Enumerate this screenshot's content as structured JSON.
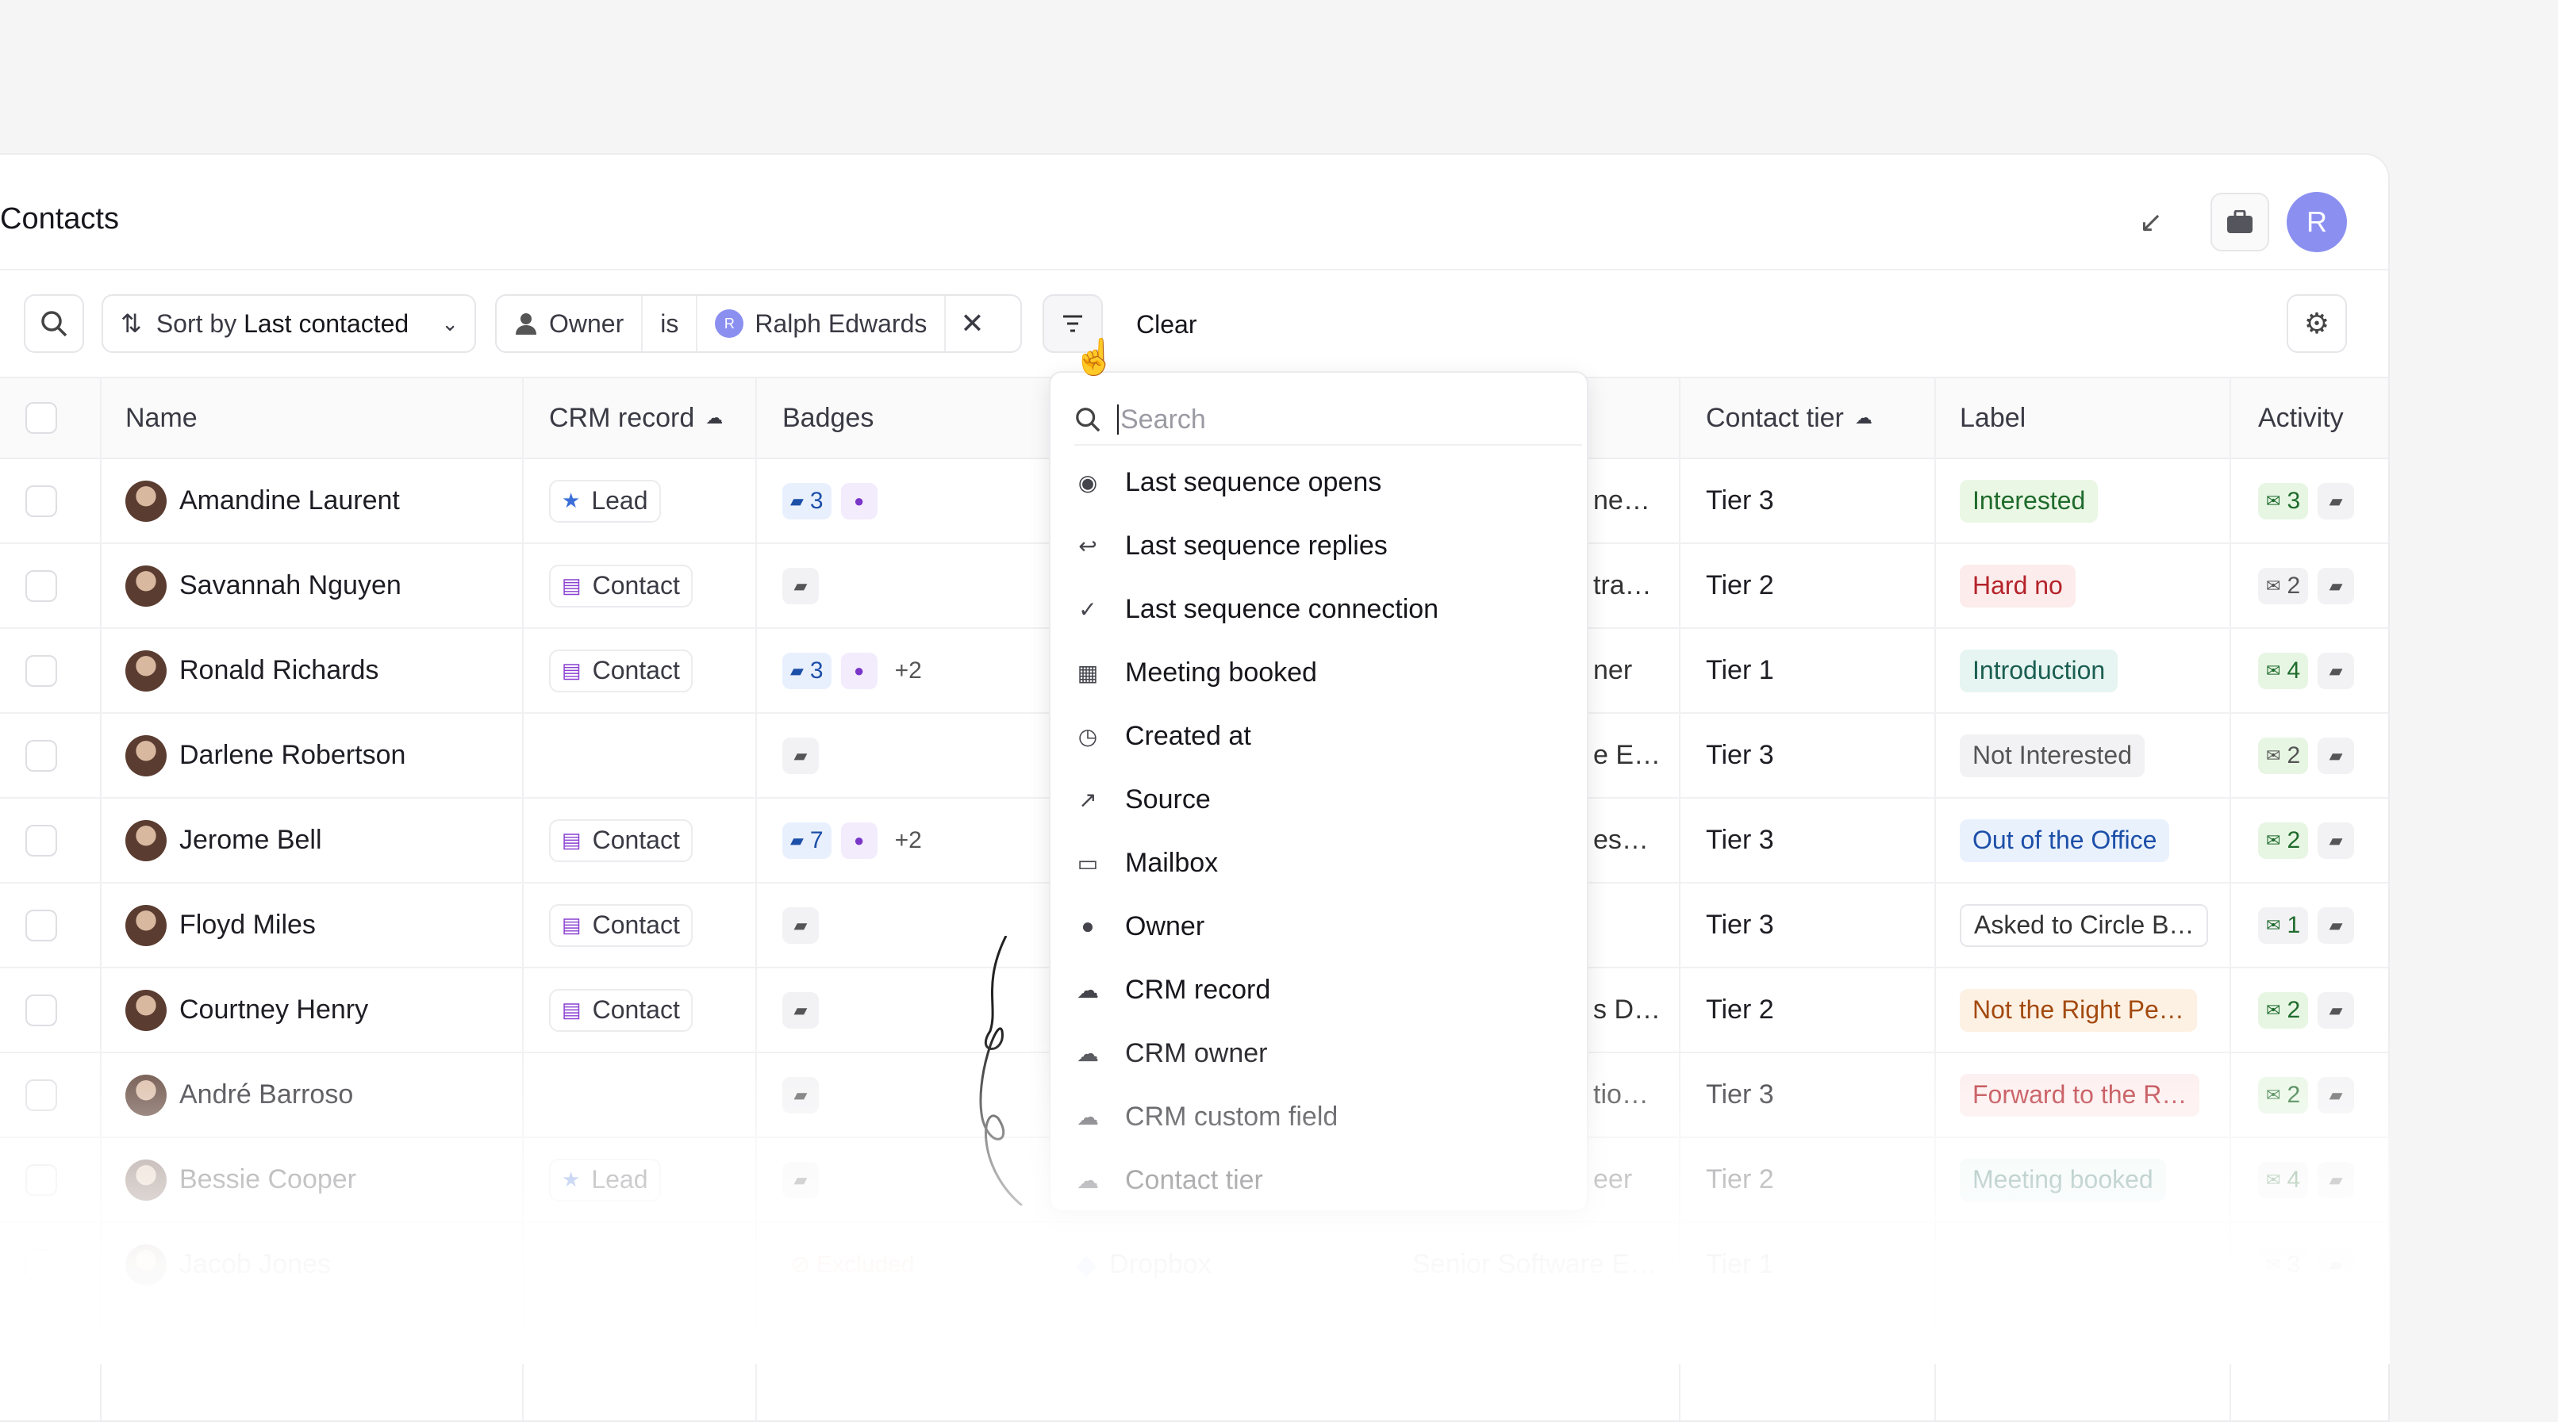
{
  "header": {
    "title": "Contacts",
    "avatar_initial": "R"
  },
  "toolbar": {
    "sort_prefix": "Sort by",
    "sort_field": "Last contacted",
    "filter_field": "Owner",
    "filter_op": "is",
    "filter_value": "Ralph Edwards",
    "filter_value_initial": "R",
    "clear_label": "Clear"
  },
  "table": {
    "columns": [
      "Name",
      "CRM record",
      "Badges",
      "Contact tier",
      "Label",
      "Activity"
    ]
  },
  "rows": [
    {
      "name": "Amandine Laurent",
      "crm": "Lead",
      "crm_icon": "star-icon",
      "badge_count": "3",
      "badge_extra": "",
      "truncated": "ne…",
      "tier": "Tier 3",
      "label": "Interested",
      "label_color": "#1f6b2c",
      "label_bg": "#eaf7e4",
      "act1": "3",
      "act2": ""
    },
    {
      "name": "Savannah Nguyen",
      "crm": "Contact",
      "crm_icon": "id-card-icon",
      "badge_count": "",
      "badge_extra": "",
      "truncated": "tra…",
      "tier": "Tier 2",
      "label": "Hard no",
      "label_color": "#b4232a",
      "label_bg": "#fdecec",
      "act1": "2",
      "act2": ""
    },
    {
      "name": "Ronald Richards",
      "crm": "Contact",
      "crm_icon": "id-card-icon",
      "badge_count": "3",
      "badge_extra": "+2",
      "truncated": "ner",
      "tier": "Tier 1",
      "label": "Introduction",
      "label_color": "#1b5e52",
      "label_bg": "#e6f5f1",
      "act1": "4",
      "act2": ""
    },
    {
      "name": "Darlene Robertson",
      "crm": "",
      "crm_icon": "",
      "badge_count": "",
      "badge_extra": "",
      "truncated": "e E…",
      "tier": "Tier 3",
      "label": "Not Interested",
      "label_color": "#555",
      "label_bg": "#f2f2f4",
      "act1": "2",
      "act2": ""
    },
    {
      "name": "Jerome Bell",
      "crm": "Contact",
      "crm_icon": "id-card-icon",
      "badge_count": "7",
      "badge_extra": "+2",
      "truncated": "es…",
      "tier": "Tier 3",
      "label": "Out of the Office",
      "label_color": "#1c4fa8",
      "label_bg": "#e9f1fd",
      "act1": "2",
      "act2": ""
    },
    {
      "name": "Floyd Miles",
      "crm": "Contact",
      "crm_icon": "id-card-icon",
      "badge_count": "",
      "badge_extra": "",
      "truncated": "",
      "tier": "Tier 3",
      "label": "Asked to Circle B…",
      "label_color": "#333",
      "label_bg": "#fff",
      "act1": "1",
      "act2": ""
    },
    {
      "name": "Courtney Henry",
      "crm": "Contact",
      "crm_icon": "id-card-icon",
      "badge_count": "",
      "badge_extra": "",
      "truncated": "s D…",
      "tier": "Tier 2",
      "label": "Not the Right Pe…",
      "label_color": "#a34a0f",
      "label_bg": "#fdf1e4",
      "act1": "2",
      "act2": ""
    },
    {
      "name": "André Barroso",
      "crm": "",
      "crm_icon": "",
      "badge_count": "",
      "badge_extra": "",
      "truncated": "tio…",
      "tier": "Tier 3",
      "label": "Forward to the R…",
      "label_color": "#b4232a",
      "label_bg": "#fdecec",
      "act1": "2",
      "act2": ""
    },
    {
      "name": "Bessie Cooper",
      "crm": "Lead",
      "crm_icon": "star-icon",
      "badge_count": "",
      "badge_extra": "",
      "truncated": "eer",
      "tier": "Tier 2",
      "label": "Meeting booked",
      "label_color": "#1b5e52",
      "label_bg": "#e6f5f1",
      "act1": "4",
      "act2": ""
    },
    {
      "name": "Jacob Jones",
      "crm": "",
      "crm_icon": "",
      "badge_count": "",
      "badge_extra": "Excluded",
      "truncated": "Senior Software E…",
      "company": "Dropbox",
      "tier": "Tier 1",
      "label": "",
      "label_color": "#555",
      "label_bg": "#fff",
      "act1": "3",
      "act2": ""
    }
  ],
  "dropdown": {
    "placeholder": "Search",
    "items": [
      {
        "label": "Last sequence opens",
        "icon": "eye-icon"
      },
      {
        "label": "Last sequence replies",
        "icon": "reply-icon"
      },
      {
        "label": "Last sequence connection",
        "icon": "user-check-icon"
      },
      {
        "label": "Meeting booked",
        "icon": "calendar-icon"
      },
      {
        "label": "Created at",
        "icon": "clock-icon"
      },
      {
        "label": "Source",
        "icon": "share-icon"
      },
      {
        "label": "Mailbox",
        "icon": "mailbox-icon"
      },
      {
        "label": "Owner",
        "icon": "user-icon"
      },
      {
        "label": "CRM record",
        "icon": "cloud-icon"
      },
      {
        "label": "CRM owner",
        "icon": "cloud-icon"
      },
      {
        "label": "CRM custom field",
        "icon": "cloud-icon"
      },
      {
        "label": "Contact tier",
        "icon": "cloud-icon"
      }
    ]
  }
}
